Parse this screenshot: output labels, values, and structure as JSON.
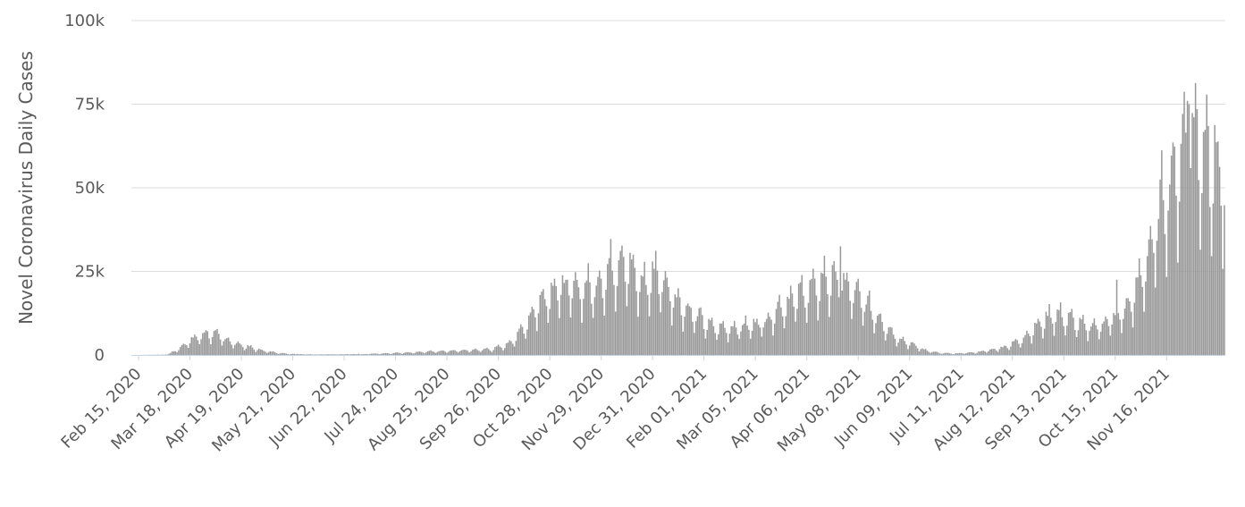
{
  "chart_data": {
    "type": "bar",
    "title": "",
    "xlabel": "",
    "ylabel": "Novel Coronavirus Daily Cases",
    "ylim": [
      0,
      100000
    ],
    "yticks": [
      {
        "value": 0,
        "label": "0"
      },
      {
        "value": 25000,
        "label": "25k"
      },
      {
        "value": 50000,
        "label": "50k"
      },
      {
        "value": 75000,
        "label": "75k"
      },
      {
        "value": 100000,
        "label": "100k"
      }
    ],
    "x_start": "2020-02-15",
    "x_end": "2021-12-26",
    "xticks": [
      "Feb 15, 2020",
      "Mar 18, 2020",
      "Apr 19, 2020",
      "May 21, 2020",
      "Jun 22, 2020",
      "Jul 24, 2020",
      "Aug 25, 2020",
      "Sep 26, 2020",
      "Oct 28, 2020",
      "Nov 29, 2020",
      "Dec 31, 2020",
      "Feb 01, 2021",
      "Mar 05, 2021",
      "Apr 06, 2021",
      "May 08, 2021",
      "Jun 09, 2021",
      "Jul 11, 2021",
      "Aug 12, 2021",
      "Sep 13, 2021",
      "Oct 15, 2021",
      "Nov 16, 2021"
    ],
    "grid": true,
    "bar_color": "#999999",
    "grid_color": "#dcdcdc",
    "series": [
      {
        "values_note_free": true,
        "anchors": [
          [
            "2020-02-15",
            0
          ],
          [
            "2020-03-08",
            100
          ],
          [
            "2020-03-14",
            1500
          ],
          [
            "2020-03-20",
            3500
          ],
          [
            "2020-03-28",
            5500
          ],
          [
            "2020-04-03",
            6300
          ],
          [
            "2020-04-10",
            5200
          ],
          [
            "2020-04-18",
            3500
          ],
          [
            "2020-04-28",
            2200
          ],
          [
            "2020-05-08",
            1100
          ],
          [
            "2020-05-20",
            400
          ],
          [
            "2020-06-01",
            200
          ],
          [
            "2020-06-22",
            150
          ],
          [
            "2020-07-10",
            300
          ],
          [
            "2020-07-24",
            500
          ],
          [
            "2020-08-10",
            800
          ],
          [
            "2020-08-25",
            1100
          ],
          [
            "2020-09-10",
            1300
          ],
          [
            "2020-09-26",
            1700
          ],
          [
            "2020-10-05",
            2800
          ],
          [
            "2020-10-12",
            5500
          ],
          [
            "2020-10-20",
            11000
          ],
          [
            "2020-10-28",
            16500
          ],
          [
            "2020-11-05",
            19500
          ],
          [
            "2020-11-15",
            19000
          ],
          [
            "2020-11-29",
            19500
          ],
          [
            "2020-12-10",
            25000
          ],
          [
            "2020-12-18",
            28000
          ],
          [
            "2020-12-24",
            22000
          ],
          [
            "2020-12-31",
            20000
          ],
          [
            "2021-01-06",
            24000
          ],
          [
            "2021-01-15",
            18000
          ],
          [
            "2021-01-25",
            13000
          ],
          [
            "2021-02-01",
            11000
          ],
          [
            "2021-02-10",
            8000
          ],
          [
            "2021-02-20",
            7500
          ],
          [
            "2021-03-05",
            8500
          ],
          [
            "2021-03-15",
            9500
          ],
          [
            "2021-03-25",
            14000
          ],
          [
            "2021-04-06",
            17500
          ],
          [
            "2021-04-15",
            19000
          ],
          [
            "2021-04-22",
            22000
          ],
          [
            "2021-05-01",
            21000
          ],
          [
            "2021-05-08",
            18500
          ],
          [
            "2021-05-18",
            14000
          ],
          [
            "2021-05-28",
            9000
          ],
          [
            "2021-06-05",
            5000
          ],
          [
            "2021-06-12",
            3500
          ],
          [
            "2021-06-22",
            1500
          ],
          [
            "2021-07-01",
            600
          ],
          [
            "2021-07-11",
            400
          ],
          [
            "2021-07-25",
            800
          ],
          [
            "2021-08-05",
            1600
          ],
          [
            "2021-08-12",
            2400
          ],
          [
            "2021-08-22",
            4500
          ],
          [
            "2021-09-01",
            8500
          ],
          [
            "2021-09-08",
            11000
          ],
          [
            "2021-09-13",
            11500
          ],
          [
            "2021-09-22",
            10000
          ],
          [
            "2021-10-01",
            8000
          ],
          [
            "2021-10-10",
            8500
          ],
          [
            "2021-10-20",
            11000
          ],
          [
            "2021-10-28",
            14000
          ],
          [
            "2021-11-04",
            22000
          ],
          [
            "2021-11-12",
            33000
          ],
          [
            "2021-11-18",
            45000
          ],
          [
            "2021-11-25",
            52000
          ],
          [
            "2021-12-01",
            60000
          ],
          [
            "2021-12-06",
            63000
          ],
          [
            "2021-12-12",
            60000
          ],
          [
            "2021-12-18",
            57000
          ],
          [
            "2021-12-26",
            48000
          ]
        ],
        "spikes": [
          [
            "2021-05-01",
            32500
          ],
          [
            "2021-10-20",
            22500
          ],
          [
            "2021-12-03",
            76000
          ],
          [
            "2021-12-04",
            75000
          ],
          [
            "2021-12-09",
            73500
          ],
          [
            "2021-12-16",
            68500
          ]
        ]
      }
    ]
  }
}
